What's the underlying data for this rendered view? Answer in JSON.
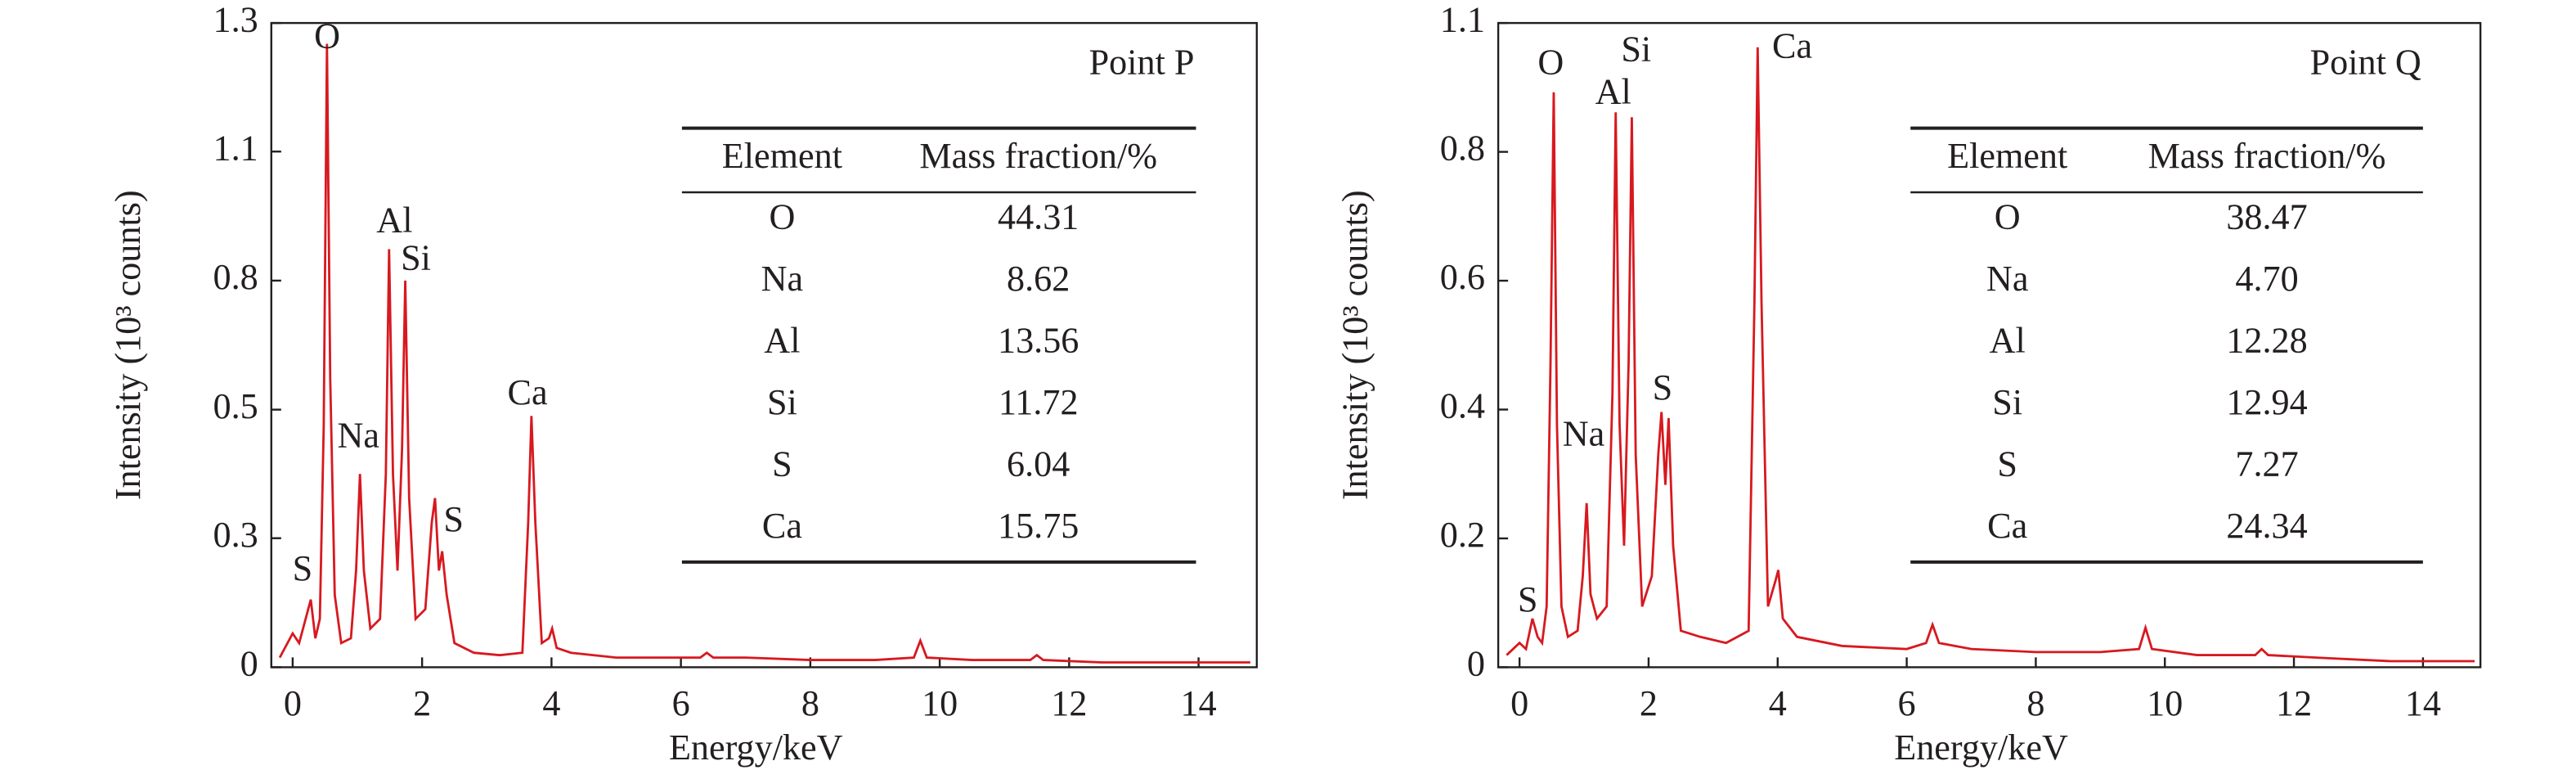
{
  "chart_data": [
    {
      "type": "line",
      "label": "Point P",
      "x_label": "Energy/keV",
      "y_label": "Intensity (10³ counts)",
      "xlim": [
        -0.33,
        14.9
      ],
      "xticks": [
        0,
        2,
        4,
        6,
        8,
        10,
        12,
        14
      ],
      "ylim": [
        0,
        1.333
      ],
      "yticks": [
        0,
        {
          "value": 0.267,
          "label": "0.3"
        },
        {
          "value": 0.533,
          "label": "0.5"
        },
        {
          "value": 0.8,
          "label": "0.8"
        },
        {
          "value": 1.067,
          "label": "1.1"
        },
        {
          "value": 1.333,
          "label": "1.3"
        }
      ],
      "color": "#d7191f",
      "x": [
        -0.2,
        0,
        0.1,
        0.2,
        0.28,
        0.35,
        0.42,
        0.48,
        0.53,
        0.58,
        0.65,
        0.75,
        0.9,
        0.98,
        1.04,
        1.1,
        1.2,
        1.35,
        1.44,
        1.49,
        1.55,
        1.62,
        1.69,
        1.74,
        1.8,
        1.9,
        2.05,
        2.15,
        2.2,
        2.26,
        2.31,
        2.38,
        2.5,
        2.8,
        3.2,
        3.55,
        3.64,
        3.69,
        3.75,
        3.85,
        3.96,
        4.01,
        4.08,
        4.3,
        5,
        6,
        6.3,
        6.4,
        6.5,
        7,
        8,
        9,
        9.6,
        9.7,
        9.8,
        10.5,
        11.4,
        11.5,
        11.6,
        12.5,
        13.5,
        14.8
      ],
      "values": [
        0.02,
        0.07,
        0.05,
        0.1,
        0.14,
        0.06,
        0.1,
        0.5,
        1.29,
        0.6,
        0.15,
        0.05,
        0.06,
        0.2,
        0.4,
        0.2,
        0.08,
        0.1,
        0.4,
        0.865,
        0.4,
        0.2,
        0.45,
        0.8,
        0.35,
        0.1,
        0.12,
        0.3,
        0.35,
        0.2,
        0.24,
        0.15,
        0.05,
        0.03,
        0.025,
        0.03,
        0.3,
        0.52,
        0.3,
        0.05,
        0.06,
        0.08,
        0.04,
        0.03,
        0.02,
        0.02,
        0.02,
        0.03,
        0.02,
        0.02,
        0.015,
        0.015,
        0.02,
        0.055,
        0.02,
        0.015,
        0.015,
        0.025,
        0.015,
        0.01,
        0.01,
        0.01
      ],
      "annotations": [
        "S",
        "O",
        "Na",
        "Al",
        "Si",
        "S",
        "Ca"
      ],
      "table": {
        "header": [
          "Element",
          "Mass fraction/%"
        ],
        "rows": [
          [
            "O",
            "44.31"
          ],
          [
            "Na",
            "8.62"
          ],
          [
            "Al",
            "13.56"
          ],
          [
            "Si",
            "11.72"
          ],
          [
            "S",
            "6.04"
          ],
          [
            "Ca",
            "15.75"
          ]
        ]
      }
    },
    {
      "type": "line",
      "label": "Point Q",
      "x_label": "Energy/keV",
      "y_label": "Intensity (10³ counts)",
      "xlim": [
        -0.33,
        14.89
      ],
      "xticks": [
        0,
        2,
        4,
        6,
        8,
        10,
        12,
        14
      ],
      "ylim": [
        0,
        1.06
      ],
      "yticks": [
        0,
        {
          "value": 0.212,
          "label": "0.2"
        },
        {
          "value": 0.424,
          "label": "0.4"
        },
        {
          "value": 0.636,
          "label": "0.6"
        },
        {
          "value": 0.848,
          "label": "0.8"
        },
        {
          "value": 1.06,
          "label": "1.1"
        }
      ],
      "color": "#d7191f",
      "x": [
        -0.2,
        0,
        0.1,
        0.2,
        0.28,
        0.35,
        0.42,
        0.48,
        0.53,
        0.58,
        0.65,
        0.75,
        0.9,
        0.98,
        1.04,
        1.1,
        1.2,
        1.35,
        1.44,
        1.49,
        1.55,
        1.62,
        1.69,
        1.74,
        1.8,
        1.9,
        2.05,
        2.15,
        2.2,
        2.26,
        2.31,
        2.38,
        2.5,
        2.8,
        3.2,
        3.55,
        3.64,
        3.69,
        3.75,
        3.85,
        3.96,
        4.01,
        4.08,
        4.3,
        5,
        6,
        6.3,
        6.4,
        6.5,
        7,
        8,
        9,
        9.6,
        9.7,
        9.8,
        10.5,
        11.4,
        11.5,
        11.6,
        12.5,
        13.5,
        14.8
      ],
      "values": [
        0.02,
        0.04,
        0.03,
        0.08,
        0.05,
        0.04,
        0.1,
        0.5,
        0.946,
        0.4,
        0.1,
        0.05,
        0.06,
        0.15,
        0.27,
        0.12,
        0.08,
        0.1,
        0.45,
        0.913,
        0.4,
        0.2,
        0.5,
        0.905,
        0.35,
        0.1,
        0.15,
        0.35,
        0.42,
        0.3,
        0.41,
        0.2,
        0.06,
        0.05,
        0.04,
        0.06,
        0.6,
        1.02,
        0.6,
        0.1,
        0.14,
        0.16,
        0.08,
        0.05,
        0.035,
        0.03,
        0.04,
        0.07,
        0.04,
        0.03,
        0.025,
        0.025,
        0.03,
        0.065,
        0.03,
        0.02,
        0.02,
        0.03,
        0.02,
        0.015,
        0.01,
        0.01
      ],
      "annotations": [
        "S",
        "O",
        "Na",
        "Al",
        "Si",
        "S",
        "Ca"
      ],
      "table": {
        "header": [
          "Element",
          "Mass fraction/%"
        ],
        "rows": [
          [
            "O",
            "38.47"
          ],
          [
            "Na",
            "4.70"
          ],
          [
            "Al",
            "12.28"
          ],
          [
            "Si",
            "12.94"
          ],
          [
            "S",
            "7.27"
          ],
          [
            "Ca",
            "24.34"
          ]
        ]
      }
    }
  ]
}
